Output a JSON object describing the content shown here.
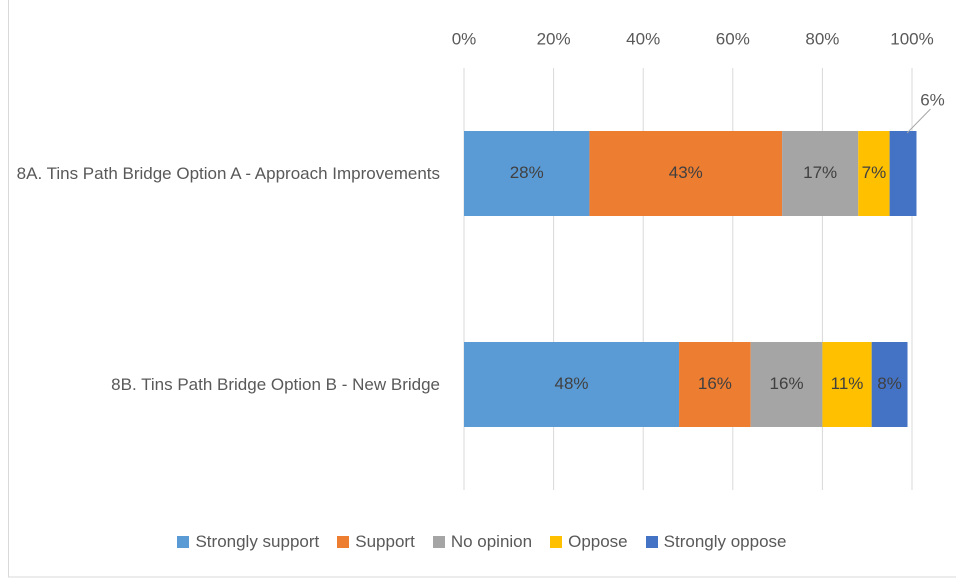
{
  "chart_data": {
    "type": "stacked_bar_horizontal",
    "categories": [
      "8A. Tins Path Bridge Option A - Approach Improvements",
      "8B. Tins Path Bridge Option B - New Bridge"
    ],
    "series": [
      {
        "name": "Strongly support",
        "color": "#5b9bd5",
        "values": [
          28,
          48
        ],
        "value_labels": [
          "28%",
          "48%"
        ]
      },
      {
        "name": "Support",
        "color": "#ed7d31",
        "values": [
          43,
          16
        ],
        "value_labels": [
          "43%",
          "16%"
        ]
      },
      {
        "name": "No opinion",
        "color": "#a5a5a5",
        "values": [
          17,
          16
        ],
        "value_labels": [
          "17%",
          "16%"
        ]
      },
      {
        "name": "Oppose",
        "color": "#ffc000",
        "values": [
          7,
          11
        ],
        "value_labels": [
          "7%",
          "11%"
        ]
      },
      {
        "name": "Strongly oppose",
        "color": "#4472c4",
        "values": [
          6,
          8
        ],
        "value_labels": [
          "6%",
          "8%"
        ]
      }
    ],
    "xlim": [
      0,
      100
    ],
    "xticks": [
      {
        "value": 0,
        "label": "0%"
      },
      {
        "value": 20,
        "label": "20%"
      },
      {
        "value": 40,
        "label": "40%"
      },
      {
        "value": 60,
        "label": "60%"
      },
      {
        "value": 80,
        "label": "80%"
      },
      {
        "value": 100,
        "label": "100%"
      }
    ],
    "grid": true,
    "legend": "bottom"
  }
}
